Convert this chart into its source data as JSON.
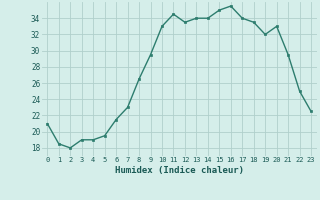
{
  "x": [
    0,
    1,
    2,
    3,
    4,
    5,
    6,
    7,
    8,
    9,
    10,
    11,
    12,
    13,
    14,
    15,
    16,
    17,
    18,
    19,
    20,
    21,
    22,
    23
  ],
  "y": [
    21.0,
    18.5,
    18.0,
    19.0,
    19.0,
    19.5,
    21.5,
    23.0,
    26.5,
    29.5,
    33.0,
    34.5,
    33.5,
    34.0,
    34.0,
    35.0,
    35.5,
    34.0,
    33.5,
    32.0,
    33.0,
    29.5,
    25.0,
    22.5
  ],
  "xlabel": "Humidex (Indice chaleur)",
  "ylim": [
    17,
    36
  ],
  "xlim": [
    -0.5,
    23.5
  ],
  "yticks": [
    18,
    20,
    22,
    24,
    26,
    28,
    30,
    32,
    34
  ],
  "xticks": [
    0,
    1,
    2,
    3,
    4,
    5,
    6,
    7,
    8,
    9,
    10,
    11,
    12,
    13,
    14,
    15,
    16,
    17,
    18,
    19,
    20,
    21,
    22,
    23
  ],
  "line_color": "#2d7d6e",
  "marker_color": "#2d7d6e",
  "bg_color": "#d5eeea",
  "grid_color": "#b0d0cc"
}
